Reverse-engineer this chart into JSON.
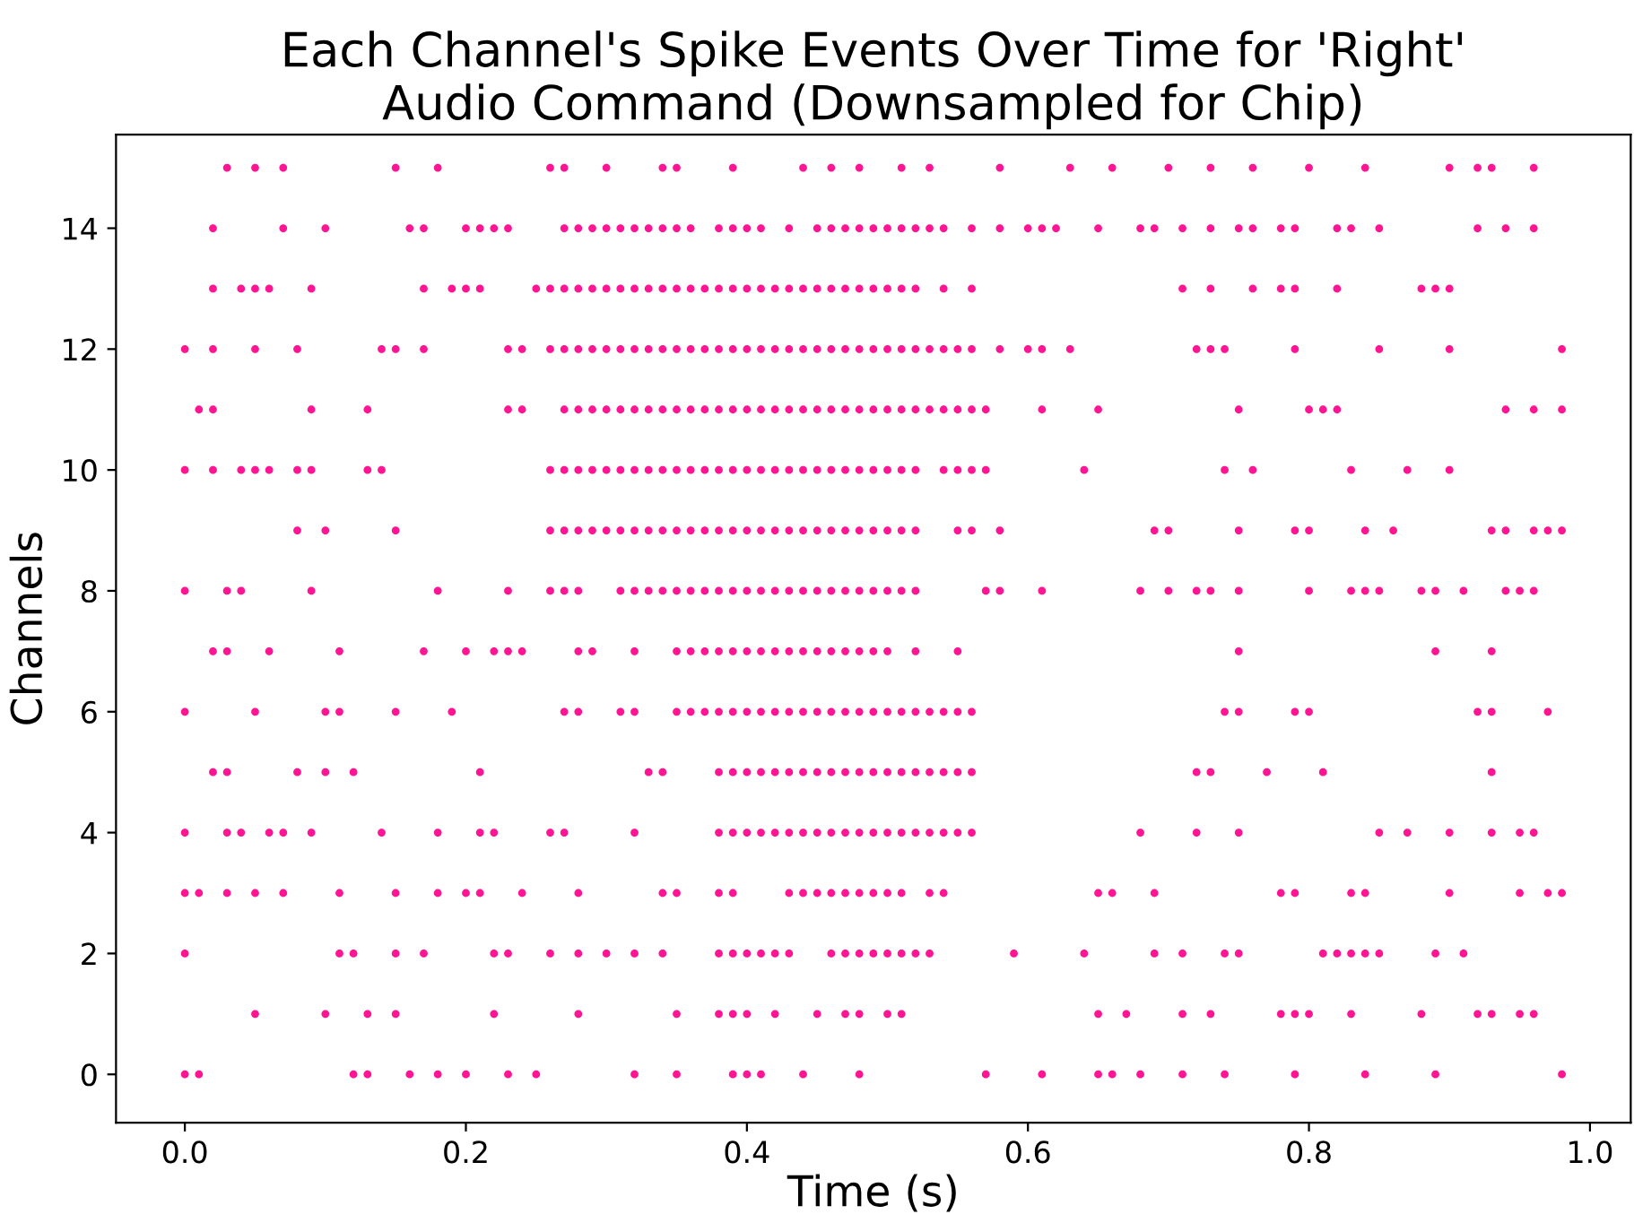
{
  "chart_data": {
    "type": "scatter",
    "title": "Each Channel's Spike Events Over Time for 'Right'\nAudio Command (Downsampled for Chip)",
    "xlabel": "Time (s)",
    "ylabel": "Channels",
    "xlim": [
      -0.049,
      1.029
    ],
    "ylim": [
      -0.8,
      15.55
    ],
    "xticks": [
      {
        "value": 0,
        "label": "0.0"
      },
      {
        "value": 0.2,
        "label": "0.2"
      },
      {
        "value": 0.4,
        "label": "0.4"
      },
      {
        "value": 0.6,
        "label": "0.6"
      },
      {
        "value": 0.8,
        "label": "0.8"
      },
      {
        "value": 1,
        "label": "1.0"
      }
    ],
    "yticks": [
      0,
      2,
      4,
      6,
      8,
      10,
      12,
      14
    ],
    "grid": false,
    "x": [
      0.0,
      0.01,
      0.12,
      0.13,
      0.16,
      0.18,
      0.2,
      0.23,
      0.25,
      0.32,
      0.35,
      0.39,
      0.4,
      0.41,
      0.44,
      0.48,
      0.57,
      0.61,
      0.65,
      0.66,
      0.68,
      0.71,
      0.74,
      0.79,
      0.84,
      0.89,
      0.98,
      0.05,
      0.1,
      0.13,
      0.15,
      0.22,
      0.28,
      0.35,
      0.38,
      0.39,
      0.4,
      0.42,
      0.45,
      0.47,
      0.48,
      0.5,
      0.51,
      0.65,
      0.67,
      0.71,
      0.73,
      0.78,
      0.79,
      0.8,
      0.83,
      0.88,
      0.92,
      0.93,
      0.95,
      0.96,
      0.0,
      0.11,
      0.12,
      0.15,
      0.17,
      0.22,
      0.23,
      0.26,
      0.28,
      0.3,
      0.32,
      0.34,
      0.38,
      0.39,
      0.4,
      0.41,
      0.42,
      0.43,
      0.46,
      0.47,
      0.48,
      0.49,
      0.5,
      0.51,
      0.52,
      0.53,
      0.59,
      0.64,
      0.69,
      0.71,
      0.74,
      0.75,
      0.81,
      0.82,
      0.83,
      0.84,
      0.85,
      0.89,
      0.91,
      0.0,
      0.01,
      0.03,
      0.05,
      0.07,
      0.11,
      0.15,
      0.18,
      0.2,
      0.21,
      0.24,
      0.28,
      0.34,
      0.35,
      0.38,
      0.39,
      0.43,
      0.44,
      0.45,
      0.46,
      0.47,
      0.48,
      0.49,
      0.5,
      0.51,
      0.53,
      0.54,
      0.65,
      0.66,
      0.69,
      0.78,
      0.79,
      0.83,
      0.84,
      0.9,
      0.95,
      0.97,
      0.98,
      0.0,
      0.03,
      0.04,
      0.06,
      0.07,
      0.09,
      0.14,
      0.18,
      0.21,
      0.22,
      0.26,
      0.27,
      0.32,
      0.38,
      0.39,
      0.4,
      0.41,
      0.42,
      0.43,
      0.44,
      0.45,
      0.46,
      0.47,
      0.48,
      0.49,
      0.5,
      0.51,
      0.52,
      0.53,
      0.54,
      0.55,
      0.56,
      0.68,
      0.72,
      0.75,
      0.85,
      0.87,
      0.9,
      0.93,
      0.95,
      0.96,
      0.02,
      0.03,
      0.08,
      0.1,
      0.12,
      0.21,
      0.33,
      0.34,
      0.38,
      0.39,
      0.4,
      0.41,
      0.42,
      0.43,
      0.44,
      0.45,
      0.46,
      0.47,
      0.48,
      0.49,
      0.5,
      0.51,
      0.52,
      0.53,
      0.54,
      0.55,
      0.56,
      0.72,
      0.73,
      0.77,
      0.81,
      0.93,
      0.0,
      0.05,
      0.1,
      0.11,
      0.15,
      0.19,
      0.27,
      0.28,
      0.31,
      0.32,
      0.35,
      0.36,
      0.37,
      0.38,
      0.39,
      0.4,
      0.41,
      0.42,
      0.43,
      0.44,
      0.45,
      0.46,
      0.47,
      0.48,
      0.49,
      0.5,
      0.51,
      0.52,
      0.53,
      0.54,
      0.55,
      0.56,
      0.74,
      0.75,
      0.79,
      0.8,
      0.92,
      0.93,
      0.97,
      0.02,
      0.03,
      0.06,
      0.11,
      0.17,
      0.2,
      0.22,
      0.23,
      0.24,
      0.28,
      0.29,
      0.32,
      0.35,
      0.36,
      0.37,
      0.38,
      0.39,
      0.4,
      0.41,
      0.42,
      0.43,
      0.44,
      0.45,
      0.46,
      0.47,
      0.48,
      0.49,
      0.5,
      0.52,
      0.55,
      0.75,
      0.89,
      0.93,
      0.0,
      0.03,
      0.04,
      0.09,
      0.18,
      0.23,
      0.26,
      0.27,
      0.28,
      0.31,
      0.32,
      0.33,
      0.34,
      0.35,
      0.36,
      0.37,
      0.38,
      0.39,
      0.4,
      0.41,
      0.42,
      0.43,
      0.44,
      0.45,
      0.46,
      0.47,
      0.48,
      0.49,
      0.5,
      0.51,
      0.52,
      0.57,
      0.58,
      0.61,
      0.68,
      0.7,
      0.72,
      0.73,
      0.75,
      0.8,
      0.83,
      0.84,
      0.85,
      0.88,
      0.89,
      0.91,
      0.94,
      0.95,
      0.96,
      0.08,
      0.1,
      0.15,
      0.26,
      0.27,
      0.28,
      0.29,
      0.3,
      0.31,
      0.32,
      0.33,
      0.34,
      0.35,
      0.36,
      0.37,
      0.38,
      0.39,
      0.4,
      0.41,
      0.42,
      0.43,
      0.44,
      0.45,
      0.46,
      0.47,
      0.48,
      0.49,
      0.5,
      0.51,
      0.52,
      0.55,
      0.56,
      0.58,
      0.69,
      0.7,
      0.75,
      0.79,
      0.8,
      0.84,
      0.86,
      0.93,
      0.94,
      0.96,
      0.97,
      0.98,
      0.0,
      0.02,
      0.04,
      0.05,
      0.06,
      0.08,
      0.09,
      0.13,
      0.14,
      0.26,
      0.27,
      0.28,
      0.29,
      0.3,
      0.31,
      0.32,
      0.33,
      0.34,
      0.35,
      0.36,
      0.37,
      0.38,
      0.39,
      0.4,
      0.41,
      0.42,
      0.43,
      0.44,
      0.45,
      0.46,
      0.47,
      0.48,
      0.49,
      0.5,
      0.51,
      0.52,
      0.54,
      0.55,
      0.56,
      0.57,
      0.64,
      0.74,
      0.76,
      0.83,
      0.87,
      0.9,
      0.01,
      0.02,
      0.09,
      0.13,
      0.23,
      0.24,
      0.27,
      0.28,
      0.29,
      0.3,
      0.31,
      0.32,
      0.33,
      0.34,
      0.35,
      0.36,
      0.37,
      0.38,
      0.39,
      0.4,
      0.41,
      0.42,
      0.43,
      0.44,
      0.45,
      0.46,
      0.47,
      0.48,
      0.49,
      0.5,
      0.51,
      0.52,
      0.53,
      0.54,
      0.55,
      0.56,
      0.57,
      0.61,
      0.65,
      0.75,
      0.8,
      0.81,
      0.82,
      0.94,
      0.96,
      0.98,
      0.0,
      0.02,
      0.05,
      0.08,
      0.14,
      0.15,
      0.17,
      0.23,
      0.24,
      0.26,
      0.27,
      0.28,
      0.29,
      0.3,
      0.31,
      0.32,
      0.33,
      0.34,
      0.35,
      0.36,
      0.37,
      0.38,
      0.39,
      0.4,
      0.41,
      0.42,
      0.43,
      0.44,
      0.45,
      0.46,
      0.47,
      0.48,
      0.49,
      0.5,
      0.51,
      0.52,
      0.53,
      0.54,
      0.55,
      0.56,
      0.58,
      0.6,
      0.61,
      0.63,
      0.72,
      0.73,
      0.74,
      0.79,
      0.85,
      0.9,
      0.98,
      0.02,
      0.04,
      0.05,
      0.06,
      0.09,
      0.17,
      0.19,
      0.2,
      0.21,
      0.25,
      0.26,
      0.27,
      0.28,
      0.29,
      0.3,
      0.31,
      0.32,
      0.33,
      0.34,
      0.35,
      0.36,
      0.37,
      0.38,
      0.39,
      0.4,
      0.41,
      0.42,
      0.43,
      0.44,
      0.45,
      0.46,
      0.47,
      0.48,
      0.49,
      0.5,
      0.51,
      0.52,
      0.54,
      0.56,
      0.71,
      0.73,
      0.76,
      0.78,
      0.79,
      0.82,
      0.88,
      0.89,
      0.9,
      0.02,
      0.07,
      0.1,
      0.16,
      0.17,
      0.2,
      0.21,
      0.22,
      0.23,
      0.27,
      0.28,
      0.29,
      0.3,
      0.31,
      0.32,
      0.33,
      0.34,
      0.35,
      0.36,
      0.38,
      0.39,
      0.4,
      0.41,
      0.43,
      0.45,
      0.46,
      0.47,
      0.48,
      0.49,
      0.5,
      0.51,
      0.52,
      0.53,
      0.54,
      0.56,
      0.58,
      0.6,
      0.61,
      0.62,
      0.65,
      0.68,
      0.69,
      0.71,
      0.73,
      0.75,
      0.76,
      0.78,
      0.79,
      0.82,
      0.83,
      0.85,
      0.92,
      0.94,
      0.96,
      0.03,
      0.05,
      0.07,
      0.15,
      0.18,
      0.26,
      0.27,
      0.3,
      0.34,
      0.35,
      0.39,
      0.44,
      0.46,
      0.48,
      0.51,
      0.53,
      0.58,
      0.63,
      0.66,
      0.7,
      0.73,
      0.76,
      0.8,
      0.84,
      0.9,
      0.92,
      0.93,
      0.96
    ],
    "series": [
      {
        "color": "#ff1493",
        "values": [
          0,
          0,
          0,
          0,
          0,
          0,
          0,
          0,
          0,
          0,
          0,
          0,
          0,
          0,
          0,
          0,
          0,
          0,
          0,
          0,
          0,
          0,
          0,
          0,
          0,
          0,
          0,
          1,
          1,
          1,
          1,
          1,
          1,
          1,
          1,
          1,
          1,
          1,
          1,
          1,
          1,
          1,
          1,
          1,
          1,
          1,
          1,
          1,
          1,
          1,
          1,
          1,
          1,
          1,
          1,
          1,
          2,
          2,
          2,
          2,
          2,
          2,
          2,
          2,
          2,
          2,
          2,
          2,
          2,
          2,
          2,
          2,
          2,
          2,
          2,
          2,
          2,
          2,
          2,
          2,
          2,
          2,
          2,
          2,
          2,
          2,
          2,
          2,
          2,
          2,
          2,
          2,
          2,
          2,
          2,
          3,
          3,
          3,
          3,
          3,
          3,
          3,
          3,
          3,
          3,
          3,
          3,
          3,
          3,
          3,
          3,
          3,
          3,
          3,
          3,
          3,
          3,
          3,
          3,
          3,
          3,
          3,
          3,
          3,
          3,
          3,
          3,
          3,
          3,
          3,
          3,
          3,
          3,
          4,
          4,
          4,
          4,
          4,
          4,
          4,
          4,
          4,
          4,
          4,
          4,
          4,
          4,
          4,
          4,
          4,
          4,
          4,
          4,
          4,
          4,
          4,
          4,
          4,
          4,
          4,
          4,
          4,
          4,
          4,
          4,
          4,
          4,
          4,
          4,
          4,
          4,
          4,
          4,
          4,
          5,
          5,
          5,
          5,
          5,
          5,
          5,
          5,
          5,
          5,
          5,
          5,
          5,
          5,
          5,
          5,
          5,
          5,
          5,
          5,
          5,
          5,
          5,
          5,
          5,
          5,
          5,
          5,
          5,
          5,
          5,
          5,
          6,
          6,
          6,
          6,
          6,
          6,
          6,
          6,
          6,
          6,
          6,
          6,
          6,
          6,
          6,
          6,
          6,
          6,
          6,
          6,
          6,
          6,
          6,
          6,
          6,
          6,
          6,
          6,
          6,
          6,
          6,
          6,
          6,
          6,
          6,
          6,
          6,
          6,
          6,
          7,
          7,
          7,
          7,
          7,
          7,
          7,
          7,
          7,
          7,
          7,
          7,
          7,
          7,
          7,
          7,
          7,
          7,
          7,
          7,
          7,
          7,
          7,
          7,
          7,
          7,
          7,
          7,
          7,
          7,
          7,
          7,
          7,
          8,
          8,
          8,
          8,
          8,
          8,
          8,
          8,
          8,
          8,
          8,
          8,
          8,
          8,
          8,
          8,
          8,
          8,
          8,
          8,
          8,
          8,
          8,
          8,
          8,
          8,
          8,
          8,
          8,
          8,
          8,
          8,
          8,
          8,
          8,
          8,
          8,
          8,
          8,
          8,
          8,
          8,
          8,
          8,
          8,
          8,
          8,
          8,
          8,
          9,
          9,
          9,
          9,
          9,
          9,
          9,
          9,
          9,
          9,
          9,
          9,
          9,
          9,
          9,
          9,
          9,
          9,
          9,
          9,
          9,
          9,
          9,
          9,
          9,
          9,
          9,
          9,
          9,
          9,
          9,
          9,
          9,
          9,
          9,
          9,
          9,
          9,
          9,
          9,
          9,
          9,
          9,
          9,
          9,
          10,
          10,
          10,
          10,
          10,
          10,
          10,
          10,
          10,
          10,
          10,
          10,
          10,
          10,
          10,
          10,
          10,
          10,
          10,
          10,
          10,
          10,
          10,
          10,
          10,
          10,
          10,
          10,
          10,
          10,
          10,
          10,
          10,
          10,
          10,
          10,
          10,
          10,
          10,
          10,
          10,
          10,
          10,
          10,
          10,
          10,
          11,
          11,
          11,
          11,
          11,
          11,
          11,
          11,
          11,
          11,
          11,
          11,
          11,
          11,
          11,
          11,
          11,
          11,
          11,
          11,
          11,
          11,
          11,
          11,
          11,
          11,
          11,
          11,
          11,
          11,
          11,
          11,
          11,
          11,
          11,
          11,
          11,
          11,
          11,
          11,
          11,
          11,
          11,
          11,
          11,
          11,
          12,
          12,
          12,
          12,
          12,
          12,
          12,
          12,
          12,
          12,
          12,
          12,
          12,
          12,
          12,
          12,
          12,
          12,
          12,
          12,
          12,
          12,
          12,
          12,
          12,
          12,
          12,
          12,
          12,
          12,
          12,
          12,
          12,
          12,
          12,
          12,
          12,
          12,
          12,
          12,
          12,
          12,
          12,
          12,
          12,
          12,
          12,
          12,
          12,
          12,
          12,
          13,
          13,
          13,
          13,
          13,
          13,
          13,
          13,
          13,
          13,
          13,
          13,
          13,
          13,
          13,
          13,
          13,
          13,
          13,
          13,
          13,
          13,
          13,
          13,
          13,
          13,
          13,
          13,
          13,
          13,
          13,
          13,
          13,
          13,
          13,
          13,
          13,
          13,
          13,
          13,
          13,
          13,
          13,
          13,
          13,
          13,
          13,
          13,
          14,
          14,
          14,
          14,
          14,
          14,
          14,
          14,
          14,
          14,
          14,
          14,
          14,
          14,
          14,
          14,
          14,
          14,
          14,
          14,
          14,
          14,
          14,
          14,
          14,
          14,
          14,
          14,
          14,
          14,
          14,
          14,
          14,
          14,
          14,
          14,
          14,
          14,
          14,
          14,
          14,
          14,
          14,
          14,
          14,
          14,
          14,
          14,
          14,
          14,
          14,
          14,
          14,
          14,
          15,
          15,
          15,
          15,
          15,
          15,
          15,
          15,
          15,
          15,
          15,
          15,
          15,
          15,
          15,
          15,
          15,
          15,
          15,
          15,
          15,
          15,
          15,
          15,
          15,
          15,
          15,
          15
        ]
      }
    ]
  }
}
